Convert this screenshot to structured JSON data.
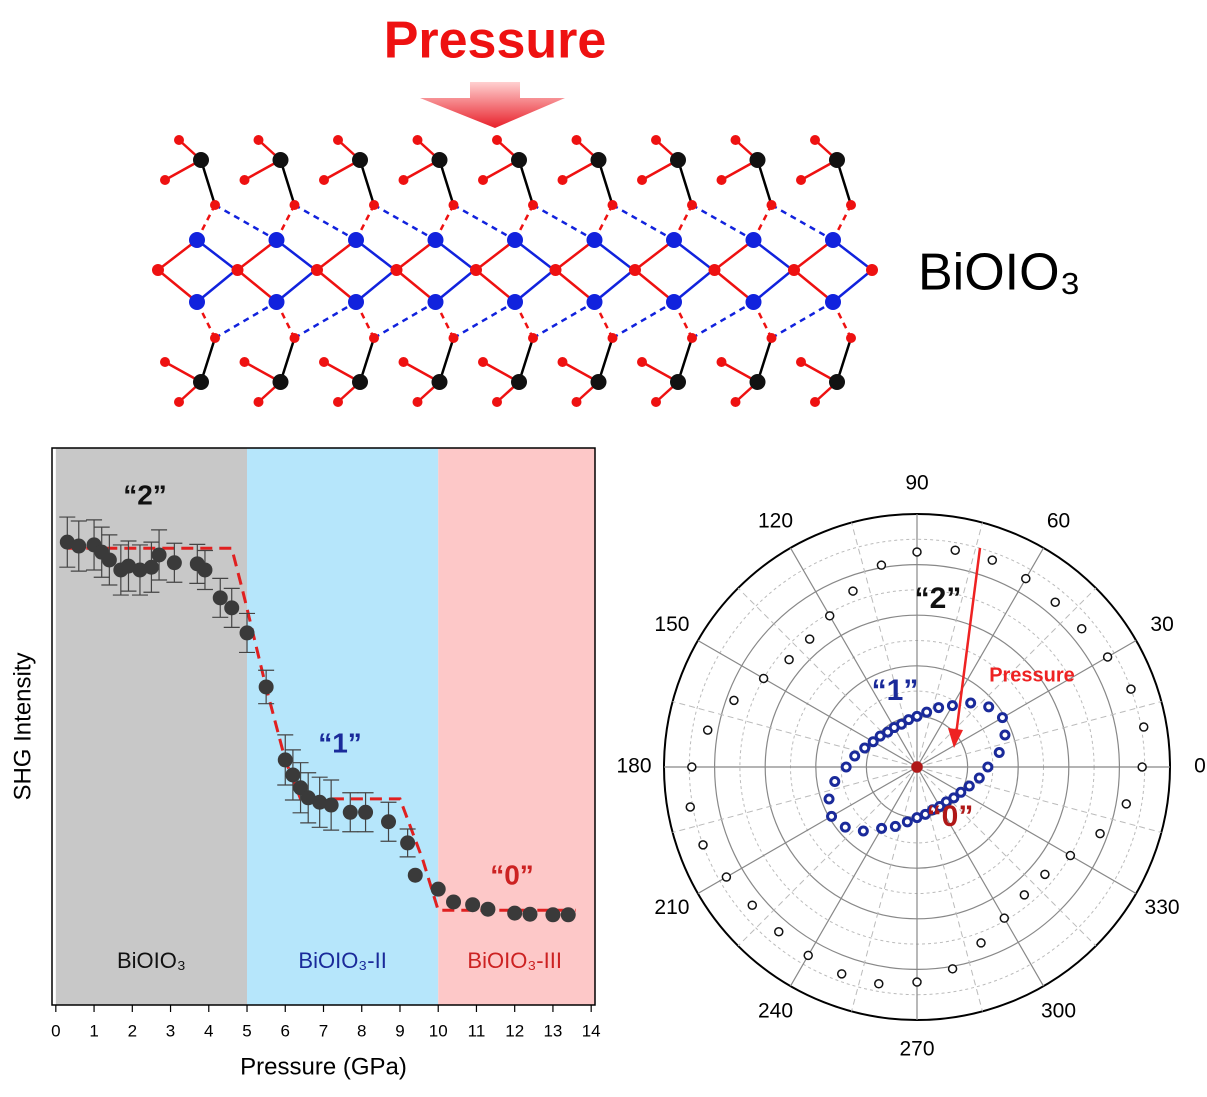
{
  "diagram": {
    "title": "Pressure",
    "label": "BiOIO₃"
  },
  "chart_data": [
    {
      "type": "scatter",
      "xlabel": "Pressure (GPa)",
      "ylabel": "SHG Intensity",
      "x": [
        0.3,
        0.6,
        1.0,
        1.2,
        1.4,
        1.7,
        1.9,
        2.2,
        2.5,
        2.7,
        3.1,
        3.7,
        3.9,
        4.3,
        4.6,
        5.0,
        5.5,
        6.0,
        6.2,
        6.4,
        6.6,
        6.9,
        7.2,
        7.7,
        8.1,
        8.7,
        9.2,
        9.4,
        10.0,
        10.4,
        10.9,
        11.3,
        12.0,
        12.4,
        13.0,
        13.4
      ],
      "values": [
        83.1,
        82.4,
        82.6,
        81.3,
        79.9,
        78.1,
        78.8,
        78.1,
        78.6,
        80.8,
        79.4,
        79.2,
        78.1,
        73.1,
        71.3,
        66.8,
        57.1,
        44.0,
        41.3,
        39.0,
        37.2,
        36.4,
        35.9,
        34.6,
        34.6,
        32.9,
        29.1,
        23.3,
        20.8,
        18.5,
        18.0,
        17.2,
        16.5,
        16.3,
        16.2,
        16.2
      ],
      "errors": [
        4.5,
        4.5,
        4.5,
        4.5,
        4.5,
        4.5,
        4.5,
        4.5,
        4.5,
        4.5,
        3.5,
        3.5,
        3.5,
        3.5,
        3.5,
        3.5,
        3.0,
        4.5,
        4.5,
        4.5,
        4.5,
        4.5,
        4.5,
        3.5,
        3.5,
        3.5,
        2.5,
        null,
        null,
        null,
        null,
        null,
        null,
        null,
        null,
        null
      ],
      "color": "#3a3a3a",
      "fit": {
        "x": [
          0.3,
          4.6,
          4.9,
          5.5,
          6.0,
          6.4,
          9.0,
          9.6,
          10.0,
          13.6
        ],
        "values": [
          82,
          82,
          74,
          57,
          44,
          37,
          37,
          26,
          17,
          17
        ],
        "color": "#e02020"
      },
      "regions": [
        {
          "label": "BiOIO₃",
          "xrange": [
            0,
            5
          ],
          "color": "#c8c8c8",
          "text_color": "#111111"
        },
        {
          "label": "BiOIO₃-II",
          "xrange": [
            5,
            10
          ],
          "color": "#b6e6fb",
          "text_color": "#1a2a9a"
        },
        {
          "label": "BiOIO₃-III",
          "xrange": [
            10,
            14.1
          ],
          "color": "#fdc8c8",
          "text_color": "#cc2222"
        }
      ],
      "annotations": [
        {
          "text": "“2”",
          "color": "#111111"
        },
        {
          "text": "“1”",
          "color": "#1a2a9a"
        },
        {
          "text": "“0”",
          "color": "#cc2222"
        }
      ],
      "xlim": [
        -0.1,
        14.1
      ],
      "xticks": [
        0,
        1,
        2,
        3,
        4,
        5,
        6,
        7,
        8,
        9,
        10,
        11,
        12,
        13,
        14
      ],
      "ylim": [
        0,
        100
      ]
    },
    {
      "type": "polar",
      "theta": [
        0,
        10,
        20,
        30,
        40,
        50,
        60,
        70,
        80,
        90,
        100,
        110,
        120,
        130,
        140,
        150,
        160,
        170,
        180,
        190,
        200,
        210,
        220,
        230,
        240,
        250,
        260,
        270,
        280,
        290,
        300,
        310,
        320,
        330,
        340,
        350
      ],
      "series": [
        {
          "name": "“2”",
          "color": "#111111",
          "values": [
            0.89,
            0.91,
            0.9,
            0.87,
            0.85,
            0.85,
            0.86,
            0.87,
            0.87,
            0.85,
            0.81,
            0.74,
            0.69,
            0.66,
            0.66,
            0.7,
            0.77,
            0.84,
            0.89,
            0.91,
            0.9,
            0.87,
            0.85,
            0.85,
            0.86,
            0.87,
            0.87,
            0.85,
            0.81,
            0.74,
            0.69,
            0.66,
            0.66,
            0.7,
            0.77,
            0.84
          ]
        },
        {
          "name": "“1”",
          "color": "#1a2a9a",
          "values": [
            0.28,
            0.33,
            0.37,
            0.39,
            0.37,
            0.33,
            0.28,
            0.25,
            0.22,
            0.2,
            0.19,
            0.18,
            0.18,
            0.18,
            0.19,
            0.2,
            0.22,
            0.25,
            0.28,
            0.33,
            0.37,
            0.39,
            0.37,
            0.33,
            0.28,
            0.25,
            0.22,
            0.2,
            0.19,
            0.18,
            0.18,
            0.18,
            0.19,
            0.2,
            0.22,
            0.25
          ]
        },
        {
          "name": "“0”",
          "color": "#b01818",
          "theta": [
            0
          ],
          "values": [
            0
          ]
        }
      ],
      "annotation": "Pressure",
      "annotation_color": "#ee2222",
      "rlim": [
        0,
        1
      ],
      "rticks": [
        0.2,
        0.4,
        0.6,
        0.8,
        1.0
      ],
      "thetaticks": [
        0,
        30,
        60,
        90,
        120,
        150,
        180,
        210,
        240,
        270,
        300,
        330
      ]
    }
  ]
}
